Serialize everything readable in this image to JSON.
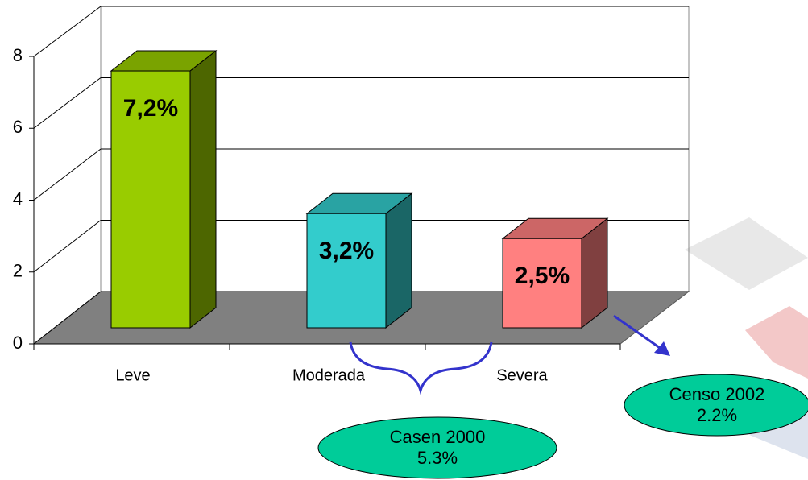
{
  "chart_data": {
    "type": "bar3d",
    "categories": [
      "Leve",
      "Moderada",
      "Severa"
    ],
    "values": [
      7.2,
      3.2,
      2.5
    ],
    "value_labels": [
      "7,2%",
      "3,2%",
      "2,5%"
    ],
    "colors": [
      "#99cc00",
      "#33cccc",
      "#ff8080"
    ],
    "side_colors": [
      "#4d6600",
      "#1a6666",
      "#804040"
    ],
    "top_colors": [
      "#7aa300",
      "#29a3a3",
      "#cc6666"
    ],
    "ylim": [
      0,
      8
    ],
    "yticks": [
      0,
      2,
      4,
      6,
      8
    ],
    "grid": true,
    "annotations": [
      {
        "lines": [
          "Casen 2000",
          "5.3%"
        ]
      },
      {
        "lines": [
          "Censo 2002",
          "2.2%"
        ]
      }
    ]
  }
}
